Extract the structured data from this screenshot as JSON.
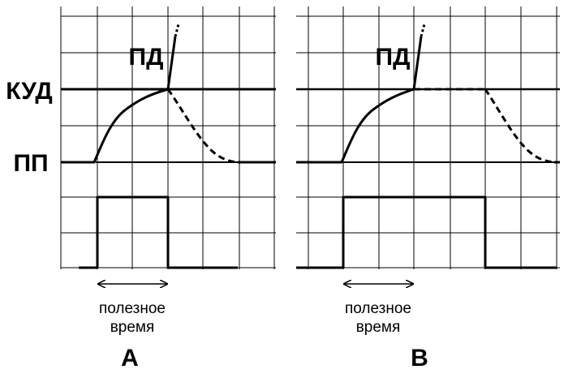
{
  "labels": {
    "kud": "КУД",
    "pp": "ПП"
  },
  "panels": [
    {
      "label": "A",
      "pd": "ПД",
      "caption": [
        "полезное",
        "время"
      ]
    },
    {
      "label": "B",
      "pd": "ПД",
      "caption": [
        "полезное",
        "время"
      ]
    }
  ]
}
